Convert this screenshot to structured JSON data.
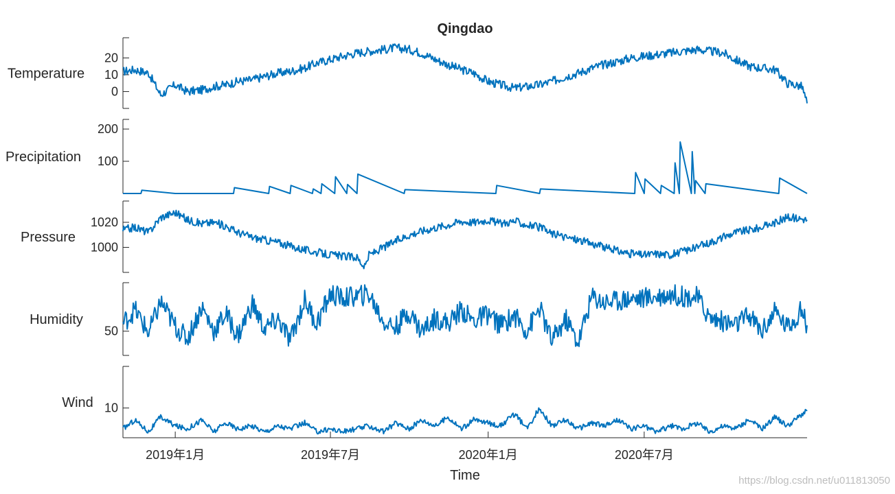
{
  "chart_data": {
    "type": "line",
    "title": "Qingdao",
    "xlabel": "Time",
    "x_ticks": [
      "2019年1月",
      "2019年7月",
      "2020年1月",
      "2020年7月"
    ],
    "x_tick_dates": [
      "2019-01-01",
      "2019-07-01",
      "2020-01-01",
      "2020-07-01"
    ],
    "xlim": [
      "2018-11-01",
      "2021-01-07"
    ],
    "grid": false,
    "legend": "none",
    "line_color": "#0072BD",
    "watermark": "https://blog.csdn.net/u011813050",
    "panels": [
      {
        "ylabel": "Temperature",
        "ylim": [
          -10,
          32
        ],
        "yticks": [
          0,
          10,
          20
        ],
        "series": [
          {
            "x": [
              "2018-11-01",
              "2018-11-15",
              "2018-12-01",
              "2018-12-15",
              "2019-01-01",
              "2019-01-15",
              "2019-02-01",
              "2019-02-15",
              "2019-03-01",
              "2019-03-15",
              "2019-04-01",
              "2019-04-15",
              "2019-05-01",
              "2019-05-15",
              "2019-06-01",
              "2019-06-15",
              "2019-07-01",
              "2019-07-15",
              "2019-08-01",
              "2019-08-15",
              "2019-09-01",
              "2019-09-15",
              "2019-10-01",
              "2019-10-15",
              "2019-11-01",
              "2019-11-15",
              "2019-12-01",
              "2019-12-15",
              "2020-01-01",
              "2020-01-15",
              "2020-02-01",
              "2020-02-15",
              "2020-03-01",
              "2020-03-15",
              "2020-04-01",
              "2020-04-15",
              "2020-05-01",
              "2020-05-15",
              "2020-06-01",
              "2020-06-15",
              "2020-07-01",
              "2020-07-15",
              "2020-08-01",
              "2020-08-15",
              "2020-09-01",
              "2020-09-15",
              "2020-10-01",
              "2020-10-15",
              "2020-11-01",
              "2020-11-15",
              "2020-12-01",
              "2020-12-15",
              "2021-01-01",
              "2021-01-07"
            ],
            "y": [
              12,
              13,
              11,
              -2,
              4,
              0,
              1,
              3,
              4,
              6,
              7,
              9,
              11,
              12,
              14,
              17,
              19,
              21,
              23,
              24,
              25,
              26,
              25,
              23,
              19,
              16,
              13,
              11,
              6,
              4,
              2,
              3,
              4,
              6,
              9,
              11,
              14,
              16,
              18,
              20,
              21,
              22,
              23,
              24,
              25,
              24,
              23,
              19,
              15,
              14,
              13,
              5,
              3,
              -7
            ]
          }
        ]
      },
      {
        "ylabel": "Precipitation",
        "ylim": [
          0,
          230
        ],
        "yticks": [
          100,
          200
        ],
        "series": [
          {
            "x": [
              "2018-11-01",
              "2018-11-22",
              "2018-11-23",
              "2019-01-01",
              "2019-03-10",
              "2019-03-11",
              "2019-04-20",
              "2019-04-21",
              "2019-05-15",
              "2019-05-16",
              "2019-06-10",
              "2019-06-11",
              "2019-06-20",
              "2019-06-21",
              "2019-07-06",
              "2019-07-07",
              "2019-07-20",
              "2019-07-21",
              "2019-08-01",
              "2019-08-02",
              "2019-09-25",
              "2019-09-26",
              "2020-01-10",
              "2020-01-11",
              "2020-03-01",
              "2020-03-02",
              "2020-06-20",
              "2020-06-21",
              "2020-07-01",
              "2020-07-02",
              "2020-07-20",
              "2020-07-21",
              "2020-08-05",
              "2020-08-06",
              "2020-08-11",
              "2020-08-12",
              "2020-08-25",
              "2020-08-26",
              "2020-08-29",
              "2020-08-30",
              "2020-09-10",
              "2020-09-11",
              "2020-12-05",
              "2020-12-06",
              "2021-01-07"
            ],
            "y": [
              0,
              0,
              10,
              0,
              0,
              18,
              0,
              22,
              0,
              25,
              0,
              14,
              0,
              30,
              0,
              52,
              0,
              28,
              0,
              60,
              0,
              12,
              0,
              25,
              0,
              14,
              0,
              65,
              0,
              45,
              0,
              25,
              0,
              95,
              0,
              160,
              0,
              130,
              0,
              40,
              0,
              30,
              0,
              48,
              0
            ]
          }
        ]
      },
      {
        "ylabel": "Pressure",
        "ylim": [
          980,
          1037
        ],
        "yticks": [
          1000,
          1020
        ],
        "series": [
          {
            "x": [
              "2018-11-01",
              "2018-11-15",
              "2018-12-01",
              "2018-12-15",
              "2019-01-01",
              "2019-01-15",
              "2019-02-01",
              "2019-02-15",
              "2019-03-01",
              "2019-03-15",
              "2019-04-01",
              "2019-04-15",
              "2019-05-01",
              "2019-05-15",
              "2019-06-01",
              "2019-06-15",
              "2019-07-01",
              "2019-07-15",
              "2019-08-01",
              "2019-08-10",
              "2019-08-15",
              "2019-09-01",
              "2019-09-15",
              "2019-10-01",
              "2019-10-15",
              "2019-11-01",
              "2019-11-15",
              "2019-12-01",
              "2019-12-15",
              "2020-01-01",
              "2020-01-15",
              "2020-02-01",
              "2020-02-15",
              "2020-03-01",
              "2020-03-15",
              "2020-04-01",
              "2020-04-15",
              "2020-05-01",
              "2020-05-15",
              "2020-06-01",
              "2020-06-15",
              "2020-07-01",
              "2020-07-15",
              "2020-08-01",
              "2020-08-15",
              "2020-09-01",
              "2020-09-15",
              "2020-10-01",
              "2020-10-15",
              "2020-11-01",
              "2020-11-15",
              "2020-12-01",
              "2020-12-15",
              "2021-01-01",
              "2021-01-07"
            ],
            "y": [
              1014,
              1016,
              1012,
              1024,
              1028,
              1022,
              1019,
              1020,
              1017,
              1012,
              1008,
              1006,
              1004,
              1001,
              998,
              996,
              994,
              993,
              992,
              984,
              994,
              1000,
              1005,
              1010,
              1013,
              1016,
              1018,
              1021,
              1020,
              1022,
              1019,
              1021,
              1018,
              1016,
              1011,
              1008,
              1006,
              1003,
              1000,
              997,
              995,
              994,
              995,
              994,
              997,
              1000,
              1004,
              1008,
              1012,
              1014,
              1016,
              1020,
              1024,
              1023,
              1022
            ]
          }
        ]
      },
      {
        "ylabel": "Humidity",
        "ylim": [
          25,
          100
        ],
        "yticks": [
          50
        ],
        "series": [
          {
            "x": [
              "2018-11-01",
              "2018-11-15",
              "2018-12-01",
              "2018-12-15",
              "2019-01-01",
              "2019-01-15",
              "2019-02-01",
              "2019-02-15",
              "2019-03-01",
              "2019-03-15",
              "2019-04-01",
              "2019-04-15",
              "2019-05-01",
              "2019-05-15",
              "2019-06-01",
              "2019-06-15",
              "2019-07-01",
              "2019-07-15",
              "2019-08-01",
              "2019-08-15",
              "2019-09-01",
              "2019-09-15",
              "2019-10-01",
              "2019-10-15",
              "2019-11-01",
              "2019-11-15",
              "2019-12-01",
              "2019-12-15",
              "2020-01-01",
              "2020-01-15",
              "2020-02-01",
              "2020-02-15",
              "2020-03-01",
              "2020-03-15",
              "2020-04-01",
              "2020-04-15",
              "2020-05-01",
              "2020-05-15",
              "2020-06-01",
              "2020-06-15",
              "2020-07-01",
              "2020-07-15",
              "2020-08-01",
              "2020-08-15",
              "2020-09-01",
              "2020-09-15",
              "2020-10-01",
              "2020-10-15",
              "2020-11-01",
              "2020-11-15",
              "2020-12-01",
              "2020-12-15",
              "2021-01-01",
              "2021-01-07"
            ],
            "y": [
              58,
              72,
              48,
              80,
              55,
              42,
              75,
              50,
              68,
              45,
              78,
              52,
              62,
              40,
              82,
              58,
              88,
              84,
              86,
              88,
              60,
              54,
              70,
              50,
              64,
              58,
              72,
              60,
              68,
              56,
              66,
              50,
              74,
              40,
              62,
              38,
              86,
              80,
              82,
              84,
              84,
              86,
              88,
              86,
              85,
              64,
              60,
              56,
              66,
              50,
              70,
              54,
              72,
              56
            ]
          }
        ]
      },
      {
        "ylabel": "Wind",
        "ylim": [
          0,
          24
        ],
        "yticks": [
          10
        ],
        "series": [
          {
            "x": [
              "2018-11-01",
              "2018-11-15",
              "2018-12-01",
              "2018-12-15",
              "2019-01-01",
              "2019-01-15",
              "2019-02-01",
              "2019-02-15",
              "2019-03-01",
              "2019-03-15",
              "2019-04-01",
              "2019-04-15",
              "2019-05-01",
              "2019-05-15",
              "2019-06-01",
              "2019-06-15",
              "2019-07-01",
              "2019-07-15",
              "2019-08-01",
              "2019-08-15",
              "2019-09-01",
              "2019-09-15",
              "2019-10-01",
              "2019-10-15",
              "2019-11-01",
              "2019-11-15",
              "2019-12-01",
              "2019-12-15",
              "2020-01-01",
              "2020-01-15",
              "2020-02-01",
              "2020-02-15",
              "2020-03-01",
              "2020-03-15",
              "2020-04-01",
              "2020-04-15",
              "2020-05-01",
              "2020-05-15",
              "2020-06-01",
              "2020-06-15",
              "2020-07-01",
              "2020-07-15",
              "2020-08-01",
              "2020-08-15",
              "2020-09-01",
              "2020-09-15",
              "2020-10-01",
              "2020-10-15",
              "2020-11-01",
              "2020-11-15",
              "2020-12-01",
              "2020-12-15",
              "2021-01-01",
              "2021-01-07"
            ],
            "y": [
              3,
              6,
              2,
              7,
              4,
              3,
              6,
              2,
              5,
              3,
              4,
              2,
              4,
              3,
              5,
              2,
              3,
              2,
              3,
              4,
              2,
              5,
              3,
              6,
              4,
              7,
              3,
              6,
              5,
              4,
              8,
              3,
              10,
              4,
              6,
              3,
              5,
              4,
              6,
              3,
              4,
              2,
              4,
              3,
              5,
              2,
              4,
              3,
              6,
              3,
              7,
              4,
              8,
              9
            ]
          }
        ]
      }
    ]
  }
}
